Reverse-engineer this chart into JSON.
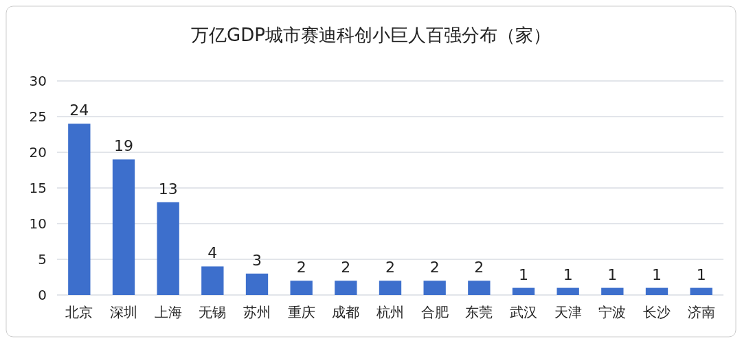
{
  "chart_data": {
    "type": "bar",
    "title": "万亿GDP城市赛迪科创小巨人百强分布（家）",
    "categories": [
      "北京",
      "深圳",
      "上海",
      "无锡",
      "苏州",
      "重庆",
      "成都",
      "杭州",
      "合肥",
      "东莞",
      "武汉",
      "天津",
      "宁波",
      "长沙",
      "济南"
    ],
    "values": [
      24,
      19,
      13,
      4,
      3,
      2,
      2,
      2,
      2,
      2,
      1,
      1,
      1,
      1,
      1
    ],
    "color": "#3d6fcc",
    "ylim": [
      0,
      30
    ],
    "yticks": [
      0,
      5,
      10,
      15,
      20,
      25,
      30
    ],
    "grid": "y",
    "data_labels": true
  }
}
